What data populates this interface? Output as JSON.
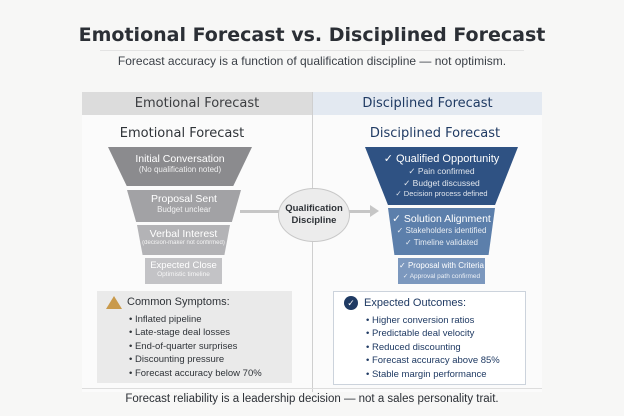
{
  "title": "Emotional Forecast vs. Disciplined Forecast",
  "subtitle": "Forecast accuracy is a function of qualification discipline — not optimism.",
  "left": {
    "header": "Emotional Forecast",
    "heading": "Emotional Forecast",
    "stages": [
      {
        "label": "Initial Conversation",
        "note": "(No qualification noted)"
      },
      {
        "label": "Proposal Sent",
        "note": "Budget unclear"
      },
      {
        "label": "Verbal Interest",
        "note": "(decision-maker not confirmed)"
      },
      {
        "label": "Expected Close",
        "note": "Optimistic timeline"
      }
    ],
    "box": {
      "icon": "warning-icon",
      "title": "Common Symptoms:",
      "items": [
        "Inflated pipeline",
        "Late-stage deal losses",
        "End-of-quarter surprises",
        "Discounting pressure",
        "Forecast accuracy below 70%"
      ]
    }
  },
  "center": {
    "label_line1": "Qualification",
    "label_line2": "Discipline"
  },
  "right": {
    "header": "Disciplined Forecast",
    "heading": "Disciplined Forecast",
    "stages": [
      {
        "label": "✓ Qualified Opportunity",
        "notes": [
          "✓ Pain confirmed",
          "✓ Budget discussed",
          "✓ Decision process defined"
        ]
      },
      {
        "label": "✓ Solution Alignment",
        "notes": [
          "✓ Stakeholders identified",
          "✓ Timeline validated"
        ]
      },
      {
        "label": "✓ Proposal with Criteria",
        "notes": [
          "✓ Approval path confirmed"
        ]
      }
    ],
    "box": {
      "icon": "check-circle-icon",
      "title": "Expected Outcomes:",
      "items": [
        "Higher conversion ratios",
        "Predictable deal velocity",
        "Reduced discounting",
        "Forecast accuracy above 85%",
        "Stable margin performance"
      ]
    }
  },
  "footer": "Forecast reliability is a leadership decision — not a sales personality trait.",
  "colors": {
    "navy": "#2f5283",
    "gray": "#8b8b8e"
  }
}
